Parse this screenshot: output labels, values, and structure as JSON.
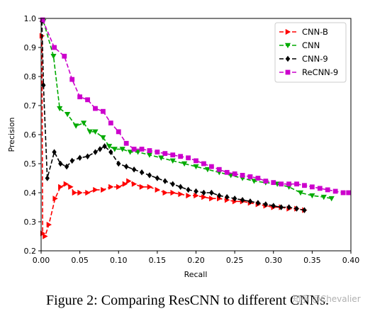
{
  "caption": "Figure 2: Comparing ResCNN to different CNNs.",
  "watermark": "知乎 @Chevalier",
  "chart_data": {
    "type": "line",
    "title": "",
    "xlabel": "Recall",
    "ylabel": "Precision",
    "xlim": [
      0.0,
      0.4
    ],
    "ylim": [
      0.2,
      1.0
    ],
    "xticks": [
      "0.00",
      "0.05",
      "0.10",
      "0.15",
      "0.20",
      "0.25",
      "0.30",
      "0.35",
      "0.40"
    ],
    "yticks": [
      "0.2",
      "0.3",
      "0.4",
      "0.5",
      "0.6",
      "0.7",
      "0.8",
      "0.9",
      "1.0"
    ],
    "grid": false,
    "legend_position": "top-right",
    "series": [
      {
        "name": "CNN-B",
        "color": "#ff0000",
        "marker": "triangle-right",
        "x": [
          0.001,
          0.002,
          0.005,
          0.01,
          0.018,
          0.025,
          0.032,
          0.038,
          0.043,
          0.05,
          0.06,
          0.07,
          0.08,
          0.09,
          0.1,
          0.108,
          0.113,
          0.12,
          0.13,
          0.14,
          0.15,
          0.16,
          0.17,
          0.18,
          0.19,
          0.2,
          0.21,
          0.22,
          0.23,
          0.24,
          0.25,
          0.26,
          0.27,
          0.28,
          0.29,
          0.3,
          0.31,
          0.32,
          0.33,
          0.34
        ],
        "y": [
          0.94,
          0.26,
          0.25,
          0.29,
          0.38,
          0.42,
          0.43,
          0.42,
          0.4,
          0.4,
          0.4,
          0.41,
          0.41,
          0.42,
          0.42,
          0.43,
          0.44,
          0.43,
          0.42,
          0.42,
          0.41,
          0.4,
          0.4,
          0.395,
          0.39,
          0.39,
          0.385,
          0.38,
          0.38,
          0.375,
          0.37,
          0.37,
          0.365,
          0.36,
          0.355,
          0.35,
          0.35,
          0.345,
          0.345,
          0.34
        ]
      },
      {
        "name": "CNN",
        "color": "#00aa00",
        "marker": "triangle-down",
        "x": [
          0.003,
          0.016,
          0.024,
          0.034,
          0.045,
          0.055,
          0.063,
          0.07,
          0.08,
          0.088,
          0.095,
          0.105,
          0.115,
          0.125,
          0.14,
          0.155,
          0.17,
          0.185,
          0.2,
          0.215,
          0.23,
          0.245,
          0.26,
          0.275,
          0.29,
          0.305,
          0.32,
          0.335,
          0.35,
          0.365,
          0.375
        ],
        "y": [
          0.99,
          0.87,
          0.69,
          0.67,
          0.63,
          0.64,
          0.61,
          0.61,
          0.59,
          0.56,
          0.55,
          0.55,
          0.54,
          0.54,
          0.53,
          0.52,
          0.51,
          0.5,
          0.49,
          0.48,
          0.47,
          0.46,
          0.45,
          0.44,
          0.435,
          0.43,
          0.42,
          0.4,
          0.39,
          0.385,
          0.38
        ]
      },
      {
        "name": "CNN-9",
        "color": "#000000",
        "marker": "diamond",
        "x": [
          0.001,
          0.003,
          0.008,
          0.017,
          0.025,
          0.033,
          0.04,
          0.05,
          0.06,
          0.07,
          0.076,
          0.082,
          0.09,
          0.1,
          0.11,
          0.12,
          0.13,
          0.14,
          0.15,
          0.16,
          0.17,
          0.18,
          0.19,
          0.2,
          0.21,
          0.22,
          0.23,
          0.24,
          0.25,
          0.26,
          0.27,
          0.28,
          0.29,
          0.3,
          0.31,
          0.32,
          0.33,
          0.34
        ],
        "y": [
          0.99,
          0.77,
          0.45,
          0.54,
          0.5,
          0.49,
          0.51,
          0.52,
          0.525,
          0.54,
          0.55,
          0.56,
          0.54,
          0.5,
          0.49,
          0.48,
          0.47,
          0.46,
          0.45,
          0.44,
          0.43,
          0.42,
          0.41,
          0.405,
          0.4,
          0.4,
          0.39,
          0.385,
          0.38,
          0.375,
          0.37,
          0.365,
          0.36,
          0.355,
          0.35,
          0.35,
          0.345,
          0.34
        ]
      },
      {
        "name": "ReCNN-9",
        "color": "#cc00cc",
        "marker": "square",
        "x": [
          0.002,
          0.017,
          0.03,
          0.04,
          0.05,
          0.06,
          0.07,
          0.08,
          0.09,
          0.1,
          0.11,
          0.12,
          0.13,
          0.14,
          0.15,
          0.16,
          0.17,
          0.18,
          0.19,
          0.2,
          0.21,
          0.22,
          0.23,
          0.24,
          0.25,
          0.26,
          0.27,
          0.28,
          0.29,
          0.3,
          0.31,
          0.32,
          0.33,
          0.34,
          0.35,
          0.36,
          0.37,
          0.38,
          0.39,
          0.397
        ],
        "y": [
          0.995,
          0.9,
          0.87,
          0.79,
          0.73,
          0.72,
          0.69,
          0.68,
          0.64,
          0.61,
          0.57,
          0.55,
          0.55,
          0.545,
          0.54,
          0.535,
          0.53,
          0.525,
          0.52,
          0.51,
          0.5,
          0.49,
          0.48,
          0.47,
          0.465,
          0.46,
          0.455,
          0.45,
          0.44,
          0.435,
          0.43,
          0.43,
          0.43,
          0.425,
          0.42,
          0.415,
          0.41,
          0.405,
          0.4,
          0.4
        ]
      }
    ]
  }
}
